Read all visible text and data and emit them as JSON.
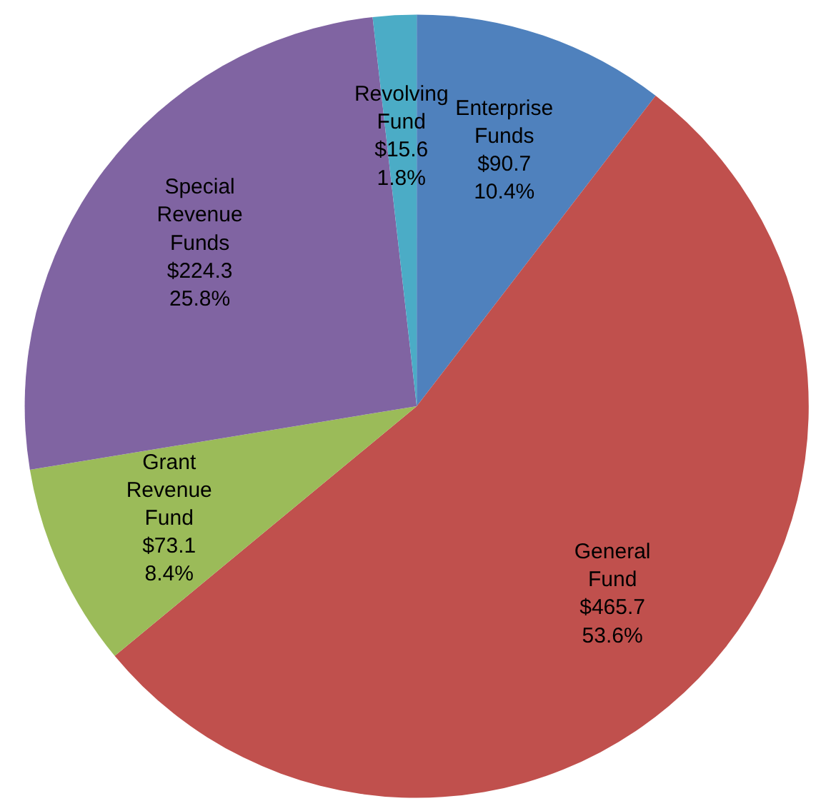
{
  "chart_data": {
    "type": "pie",
    "categories": [
      "Enterprise Funds",
      "General Fund",
      "Grant Revenue Fund",
      "Special Revenue Funds",
      "Revolving Fund"
    ],
    "values": [
      90.7,
      465.7,
      73.1,
      224.3,
      15.6
    ],
    "colors": [
      "#4f81bd",
      "#c0504d",
      "#9bbb59",
      "#8064a2",
      "#4bacc6"
    ],
    "value_labels": [
      "$90.7\n10.4%",
      "$465.7\n53.6%",
      "$73.1\n8.4%",
      "$224.3\n25.8%",
      "$15.6\n1.8%"
    ]
  }
}
